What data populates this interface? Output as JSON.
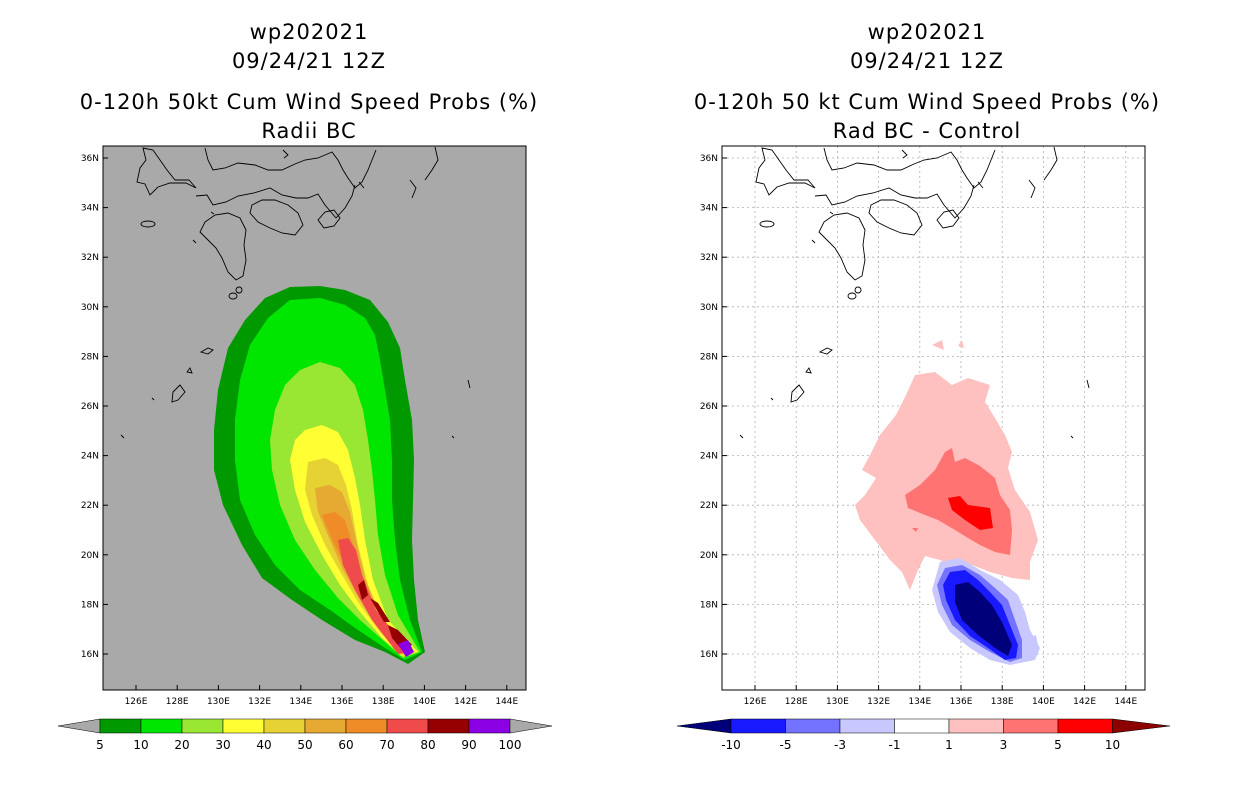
{
  "left_panel": {
    "title_line1": "wp202021",
    "title_line2": "09/24/21 12Z",
    "title_line3": "0-120h 50kt Cum Wind Speed Probs (%)",
    "title_line4": "Radii BC",
    "background_color": "#a9a9a9",
    "colorbar_labels": [
      "5",
      "10",
      "20",
      "30",
      "40",
      "50",
      "60",
      "70",
      "80",
      "90",
      "100"
    ],
    "colorbar_colors": [
      "#009a00",
      "#00e600",
      "#99e633",
      "#ffff33",
      "#e6d233",
      "#e6aa33",
      "#f08c28",
      "#f04b4b",
      "#960000",
      "#8c00e6"
    ]
  },
  "right_panel": {
    "title_line1": "wp202021",
    "title_line2": "09/24/21 12Z",
    "title_line3": "0-120h 50 kt Cum Wind Speed Probs (%)",
    "title_line4": "Rad BC - Control",
    "colorbar_labels": [
      "-10",
      "-5",
      "-3",
      "-1",
      "1",
      "3",
      "5",
      "10"
    ],
    "colorbar_colors": [
      "#00007a",
      "#1919ff",
      "#7373ff",
      "#c8c8ff",
      "#ffffff",
      "#ffc0c0",
      "#ff7373",
      "#ff0000",
      "#8c0000"
    ]
  },
  "axes": {
    "lat_labels": [
      "16N",
      "18N",
      "20N",
      "22N",
      "24N",
      "26N",
      "28N",
      "30N",
      "32N",
      "34N",
      "36N"
    ],
    "lon_labels": [
      "126E",
      "128E",
      "130E",
      "132E",
      "134E",
      "136E",
      "138E",
      "140E",
      "142E",
      "144E"
    ]
  }
}
